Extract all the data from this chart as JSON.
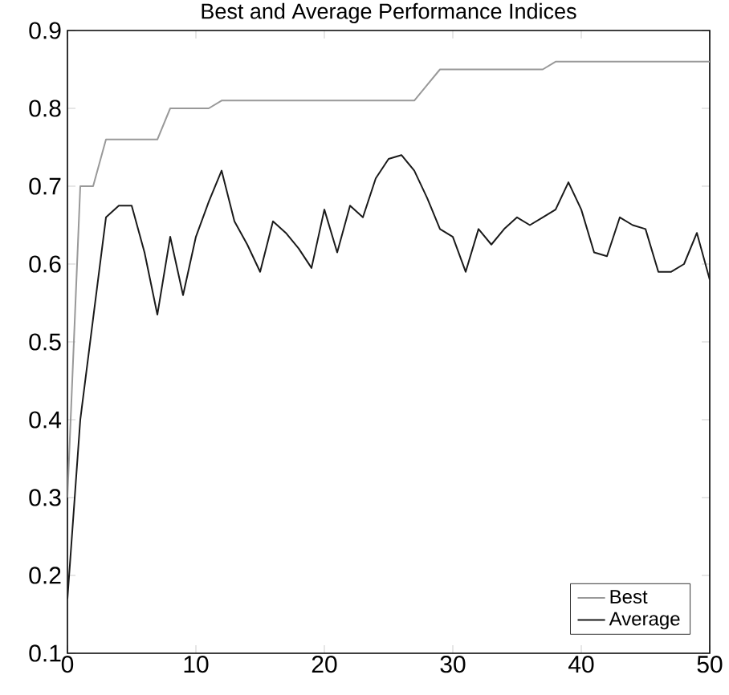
{
  "chart_data": {
    "type": "line",
    "title": "Best and Average Performance Indices",
    "x": [
      0,
      1,
      2,
      3,
      4,
      5,
      6,
      7,
      8,
      9,
      10,
      11,
      12,
      13,
      14,
      15,
      16,
      17,
      18,
      19,
      20,
      21,
      22,
      23,
      24,
      25,
      26,
      27,
      28,
      29,
      30,
      31,
      32,
      33,
      34,
      35,
      36,
      37,
      38,
      39,
      40,
      41,
      42,
      43,
      44,
      45,
      46,
      47,
      48,
      49,
      50
    ],
    "series": [
      {
        "name": "Best",
        "color": "#999999",
        "values": [
          0.3,
          0.7,
          0.7,
          0.76,
          0.76,
          0.76,
          0.76,
          0.76,
          0.8,
          0.8,
          0.8,
          0.8,
          0.81,
          0.81,
          0.81,
          0.81,
          0.81,
          0.81,
          0.81,
          0.81,
          0.81,
          0.81,
          0.81,
          0.81,
          0.81,
          0.81,
          0.81,
          0.81,
          0.83,
          0.85,
          0.85,
          0.85,
          0.85,
          0.85,
          0.85,
          0.85,
          0.85,
          0.85,
          0.86,
          0.86,
          0.86,
          0.86,
          0.86,
          0.86,
          0.86,
          0.86,
          0.86,
          0.86,
          0.86,
          0.86,
          0.86
        ]
      },
      {
        "name": "Average",
        "color": "#1a1a1a",
        "values": [
          0.17,
          0.4,
          0.53,
          0.66,
          0.675,
          0.675,
          0.615,
          0.535,
          0.635,
          0.56,
          0.635,
          0.68,
          0.72,
          0.655,
          0.625,
          0.59,
          0.655,
          0.64,
          0.62,
          0.595,
          0.67,
          0.615,
          0.675,
          0.66,
          0.71,
          0.735,
          0.74,
          0.72,
          0.685,
          0.645,
          0.635,
          0.59,
          0.645,
          0.625,
          0.645,
          0.66,
          0.65,
          0.66,
          0.67,
          0.705,
          0.67,
          0.615,
          0.61,
          0.66,
          0.65,
          0.645,
          0.59,
          0.59,
          0.6,
          0.64,
          0.58
        ]
      }
    ],
    "xlim": [
      0,
      50
    ],
    "ylim": [
      0.1,
      0.9
    ],
    "xticks": [
      0,
      10,
      20,
      30,
      40,
      50
    ],
    "yticks": [
      0.1,
      0.2,
      0.3,
      0.4,
      0.5,
      0.6,
      0.7,
      0.8,
      0.9
    ],
    "legend": "bottom right",
    "grid": false,
    "marker": "none",
    "line_style": "solid"
  }
}
